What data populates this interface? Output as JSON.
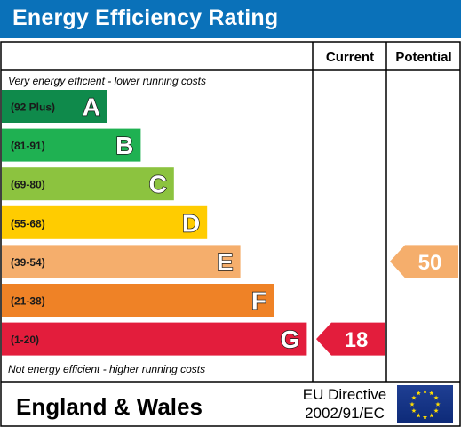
{
  "title": "Energy Efficiency Rating",
  "columns": {
    "current": "Current",
    "potential": "Potential"
  },
  "top_note": "Very energy efficient - lower running costs",
  "bottom_note": "Not energy efficient - higher running costs",
  "footer": {
    "region": "England & Wales",
    "directive_line1": "EU Directive",
    "directive_line2": "2002/91/EC"
  },
  "chart_data": {
    "type": "bar",
    "title": "Energy Efficiency Rating",
    "bands": [
      {
        "letter": "A",
        "range": "(92 Plus)",
        "color": "#0f8a4b",
        "min": 92,
        "max": 100
      },
      {
        "letter": "B",
        "range": "(81-91)",
        "color": "#1fb152",
        "min": 81,
        "max": 91
      },
      {
        "letter": "C",
        "range": "(69-80)",
        "color": "#8cc33f",
        "min": 69,
        "max": 80
      },
      {
        "letter": "D",
        "range": "(55-68)",
        "color": "#ffcc00",
        "min": 55,
        "max": 68
      },
      {
        "letter": "E",
        "range": "(39-54)",
        "color": "#f5ae6c",
        "min": 39,
        "max": 54
      },
      {
        "letter": "F",
        "range": "(21-38)",
        "color": "#ef8226",
        "min": 21,
        "max": 38
      },
      {
        "letter": "G",
        "range": "(1-20)",
        "color": "#e31d3c",
        "min": 1,
        "max": 20
      }
    ],
    "current": {
      "value": 18,
      "band": "G",
      "color": "#e31d3c"
    },
    "potential": {
      "value": 50,
      "band": "E",
      "color": "#f5ae6c"
    }
  }
}
